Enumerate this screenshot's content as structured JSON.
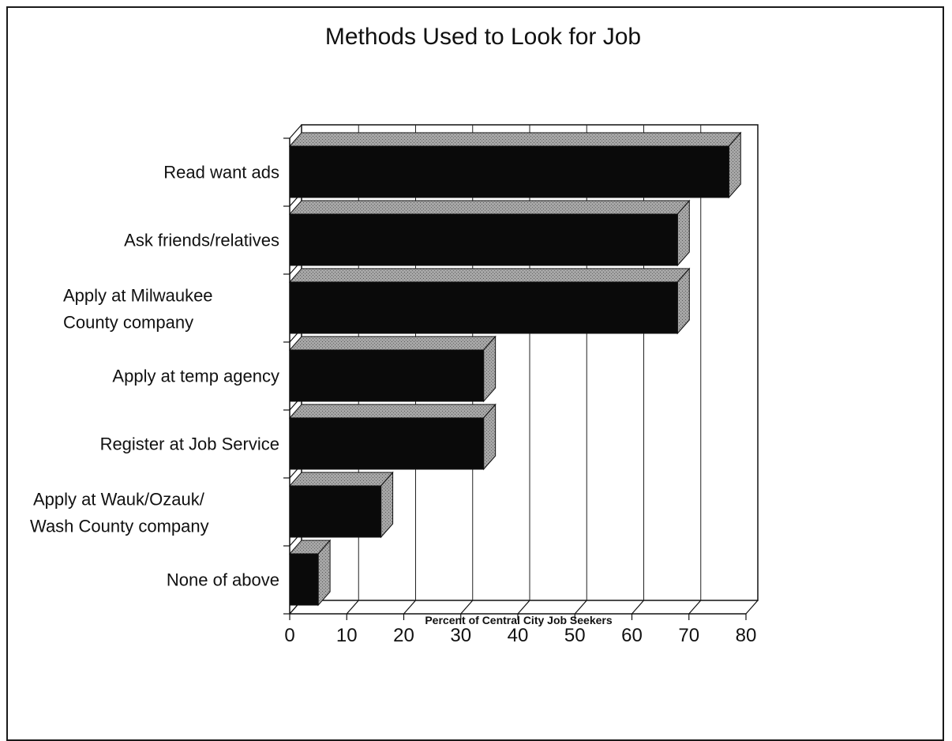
{
  "chart_data": {
    "type": "bar",
    "orientation": "horizontal",
    "title": "Methods Used to Look for Job",
    "xlabel": "Percent of Central City Job Seekers",
    "ylabel": "",
    "xlim": [
      0,
      80
    ],
    "xticks": [
      0,
      10,
      20,
      30,
      40,
      50,
      60,
      70,
      80
    ],
    "grid": true,
    "style": "3d",
    "categories": [
      [
        "Read want ads"
      ],
      [
        "Ask friends/relatives"
      ],
      [
        "Apply at Milwaukee",
        "County company"
      ],
      [
        "Apply at temp agency"
      ],
      [
        "Register at Job Service"
      ],
      [
        "Apply at Wauk/Ozauk/",
        "Wash County company"
      ],
      [
        "None of above"
      ]
    ],
    "values": [
      77,
      68,
      68,
      34,
      34,
      16,
      5
    ],
    "colors": {
      "bar_front": "#0a0a0a",
      "bar_top": "#9a9a9a",
      "bar_side": "#8c8c8c",
      "grid": "#222222"
    }
  }
}
